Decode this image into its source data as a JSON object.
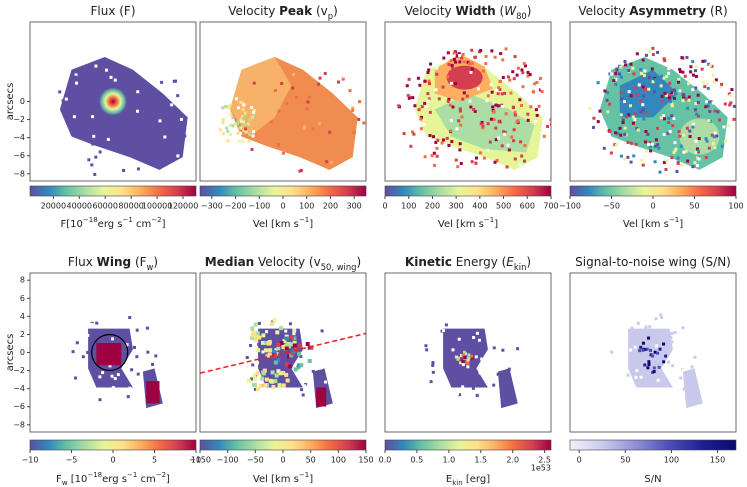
{
  "chart_data": [
    {
      "type": "image",
      "title": [
        {
          "text": "Flux (F)",
          "style": "normal"
        }
      ],
      "ylabel": "arcsecs",
      "ylim": [
        -8.8,
        8.8
      ],
      "yticks": [
        0,
        {
          "value": -2,
          "label": "−2"
        },
        {
          "value": -4,
          "label": "−4"
        },
        {
          "value": -6,
          "label": "−6"
        },
        {
          "value": -8,
          "label": "−8"
        }
      ],
      "colormap": [
        "#5e4fa2",
        "#3288bd",
        "#66c2a5",
        "#abdda4",
        "#e6f598",
        "#fee08b",
        "#fdae61",
        "#f46d43",
        "#d53e4f",
        "#9e0142"
      ],
      "clim": [
        2000,
        130000
      ],
      "cticks": [
        20000,
        40000,
        60000,
        80000,
        100000,
        120000
      ],
      "clabel": [
        {
          "text": "F[10",
          "style": "normal"
        },
        {
          "text": "−18",
          "style": "sup"
        },
        {
          "text": "erg s",
          "style": "normal"
        },
        {
          "text": "−1",
          "style": "sup"
        },
        {
          "text": " cm",
          "style": "normal"
        },
        {
          "text": "−2",
          "style": "sup"
        },
        {
          "text": "]",
          "style": "normal"
        }
      ]
    },
    {
      "type": "image",
      "title": [
        {
          "text": "Velocity ",
          "style": "normal"
        },
        {
          "text": "Peak",
          "style": "bold"
        },
        {
          "text": " (v",
          "style": "normal"
        },
        {
          "text": "p",
          "style": "sub"
        },
        {
          "text": ")",
          "style": "normal"
        }
      ],
      "colormap": [
        "#5e4fa2",
        "#3288bd",
        "#66c2a5",
        "#abdda4",
        "#e6f598",
        "#fee08b",
        "#fdae61",
        "#f46d43",
        "#d53e4f",
        "#9e0142"
      ],
      "clim": [
        -350,
        350
      ],
      "cticks": [
        {
          "value": -300,
          "label": "−300"
        },
        {
          "value": -200,
          "label": "−200"
        },
        {
          "value": -100,
          "label": "−100"
        },
        0,
        100,
        200,
        300
      ],
      "clabel": [
        {
          "text": "Vel [km s",
          "style": "normal"
        },
        {
          "text": "−1",
          "style": "sup"
        },
        {
          "text": "]",
          "style": "normal"
        }
      ]
    },
    {
      "type": "image",
      "title": [
        {
          "text": "Velocity ",
          "style": "normal"
        },
        {
          "text": "Width",
          "style": "bold"
        },
        {
          "text": " (",
          "style": "normal"
        },
        {
          "text": "W",
          "style": "italic"
        },
        {
          "text": "80",
          "style": "sub"
        },
        {
          "text": ")",
          "style": "normal"
        }
      ],
      "colormap": [
        "#5e4fa2",
        "#3288bd",
        "#66c2a5",
        "#abdda4",
        "#e6f598",
        "#fee08b",
        "#fdae61",
        "#f46d43",
        "#d53e4f",
        "#9e0142"
      ],
      "clim": [
        0,
        700
      ],
      "cticks": [
        0,
        100,
        200,
        300,
        400,
        500,
        600,
        700
      ],
      "clabel": [
        {
          "text": "Vel [km s",
          "style": "normal"
        },
        {
          "text": "−1",
          "style": "sup"
        },
        {
          "text": "]",
          "style": "normal"
        }
      ]
    },
    {
      "type": "image",
      "title": [
        {
          "text": "Velocity ",
          "style": "normal"
        },
        {
          "text": "Asymmetry",
          "style": "bold"
        },
        {
          "text": " (R)",
          "style": "normal"
        }
      ],
      "colormap": [
        "#5e4fa2",
        "#3288bd",
        "#66c2a5",
        "#abdda4",
        "#e6f598",
        "#fee08b",
        "#fdae61",
        "#f46d43",
        "#d53e4f",
        "#9e0142"
      ],
      "clim": [
        -100,
        100
      ],
      "cticks": [
        {
          "value": -100,
          "label": "−100"
        },
        {
          "value": -50,
          "label": "−50"
        },
        0,
        50,
        100
      ],
      "clabel": [
        {
          "text": "Vel [km s",
          "style": "normal"
        },
        {
          "text": "−1",
          "style": "sup"
        },
        {
          "text": "]",
          "style": "normal"
        }
      ]
    },
    {
      "type": "image",
      "title": [
        {
          "text": "Flux ",
          "style": "normal"
        },
        {
          "text": "Wing",
          "style": "bold"
        },
        {
          "text": " (F",
          "style": "normal"
        },
        {
          "text": "w",
          "style": "sub"
        },
        {
          "text": ")",
          "style": "normal"
        }
      ],
      "ylabel": "arcsecs",
      "ylim": [
        -8.8,
        8.8
      ],
      "yticks": [
        8,
        6,
        4,
        2,
        0,
        {
          "value": -2,
          "label": "−2"
        },
        {
          "value": -4,
          "label": "−4"
        },
        {
          "value": -6,
          "label": "−6"
        },
        {
          "value": -8,
          "label": "−8"
        }
      ],
      "colormap": [
        "#5e4fa2",
        "#3288bd",
        "#66c2a5",
        "#abdda4",
        "#e6f598",
        "#fee08b",
        "#fdae61",
        "#f46d43",
        "#d53e4f",
        "#9e0142"
      ],
      "clim": [
        -10,
        10
      ],
      "cticks": [
        {
          "value": -10,
          "label": "−10"
        },
        {
          "value": -5,
          "label": "−5"
        },
        0,
        5,
        10
      ],
      "clabel": [
        {
          "text": "F",
          "style": "normal"
        },
        {
          "text": "w",
          "style": "sub"
        },
        {
          "text": " [10",
          "style": "normal"
        },
        {
          "text": "−18",
          "style": "sup"
        },
        {
          "text": "erg s",
          "style": "normal"
        },
        {
          "text": "−1",
          "style": "sup"
        },
        {
          "text": " cm",
          "style": "normal"
        },
        {
          "text": "−2",
          "style": "sup"
        },
        {
          "text": "]",
          "style": "normal"
        }
      ]
    },
    {
      "type": "image",
      "title": [
        {
          "text": "Median",
          "style": "bold"
        },
        {
          "text": " Velocity (v",
          "style": "normal"
        },
        {
          "text": "50, wing",
          "style": "sub"
        },
        {
          "text": ")",
          "style": "normal"
        }
      ],
      "colormap": [
        "#5e4fa2",
        "#3288bd",
        "#66c2a5",
        "#abdda4",
        "#e6f598",
        "#fee08b",
        "#fdae61",
        "#f46d43",
        "#d53e4f",
        "#9e0142"
      ],
      "clim": [
        -150,
        150
      ],
      "cticks": [
        {
          "value": -150,
          "label": "−150"
        },
        {
          "value": -100,
          "label": "−100"
        },
        {
          "value": -50,
          "label": "−50"
        },
        0,
        50,
        100,
        150
      ],
      "clabel": [
        {
          "text": "Vel [km s",
          "style": "normal"
        },
        {
          "text": "−1",
          "style": "sup"
        },
        {
          "text": "]",
          "style": "normal"
        }
      ]
    },
    {
      "type": "image",
      "title": [
        {
          "text": "Kinetic",
          "style": "bold"
        },
        {
          "text": " Energy (",
          "style": "normal"
        },
        {
          "text": "E",
          "style": "italic"
        },
        {
          "text": "kin",
          "style": "sub"
        },
        {
          "text": ")",
          "style": "normal"
        }
      ],
      "colormap": [
        "#5e4fa2",
        "#3288bd",
        "#66c2a5",
        "#abdda4",
        "#e6f598",
        "#fee08b",
        "#fdae61",
        "#f46d43",
        "#d53e4f",
        "#9e0142"
      ],
      "clim": [
        0,
        2.6
      ],
      "cticks": [
        {
          "value": 0,
          "label": "0.0"
        },
        0.5,
        {
          "value": 1,
          "label": "1.0"
        },
        1.5,
        {
          "value": 2,
          "label": "2.0"
        },
        2.5
      ],
      "coffset": "1e53",
      "clabel": [
        {
          "text": "E",
          "style": "normal"
        },
        {
          "text": "kin",
          "style": "sub"
        },
        {
          "text": " [erg]",
          "style": "normal"
        }
      ]
    },
    {
      "type": "image",
      "title": [
        {
          "text": "Signal-to-noise wing (S/N)",
          "style": "normal"
        }
      ],
      "colormap": [
        "#f3f2fb",
        "#c9c9ec",
        "#8f8fd6",
        "#4d4db5",
        "#1f1f93",
        "#0a0a6b"
      ],
      "clim": [
        -10,
        170
      ],
      "cticks": [
        0,
        50,
        100,
        150
      ],
      "clabel": [
        {
          "text": "S/N",
          "style": "normal"
        }
      ]
    }
  ]
}
